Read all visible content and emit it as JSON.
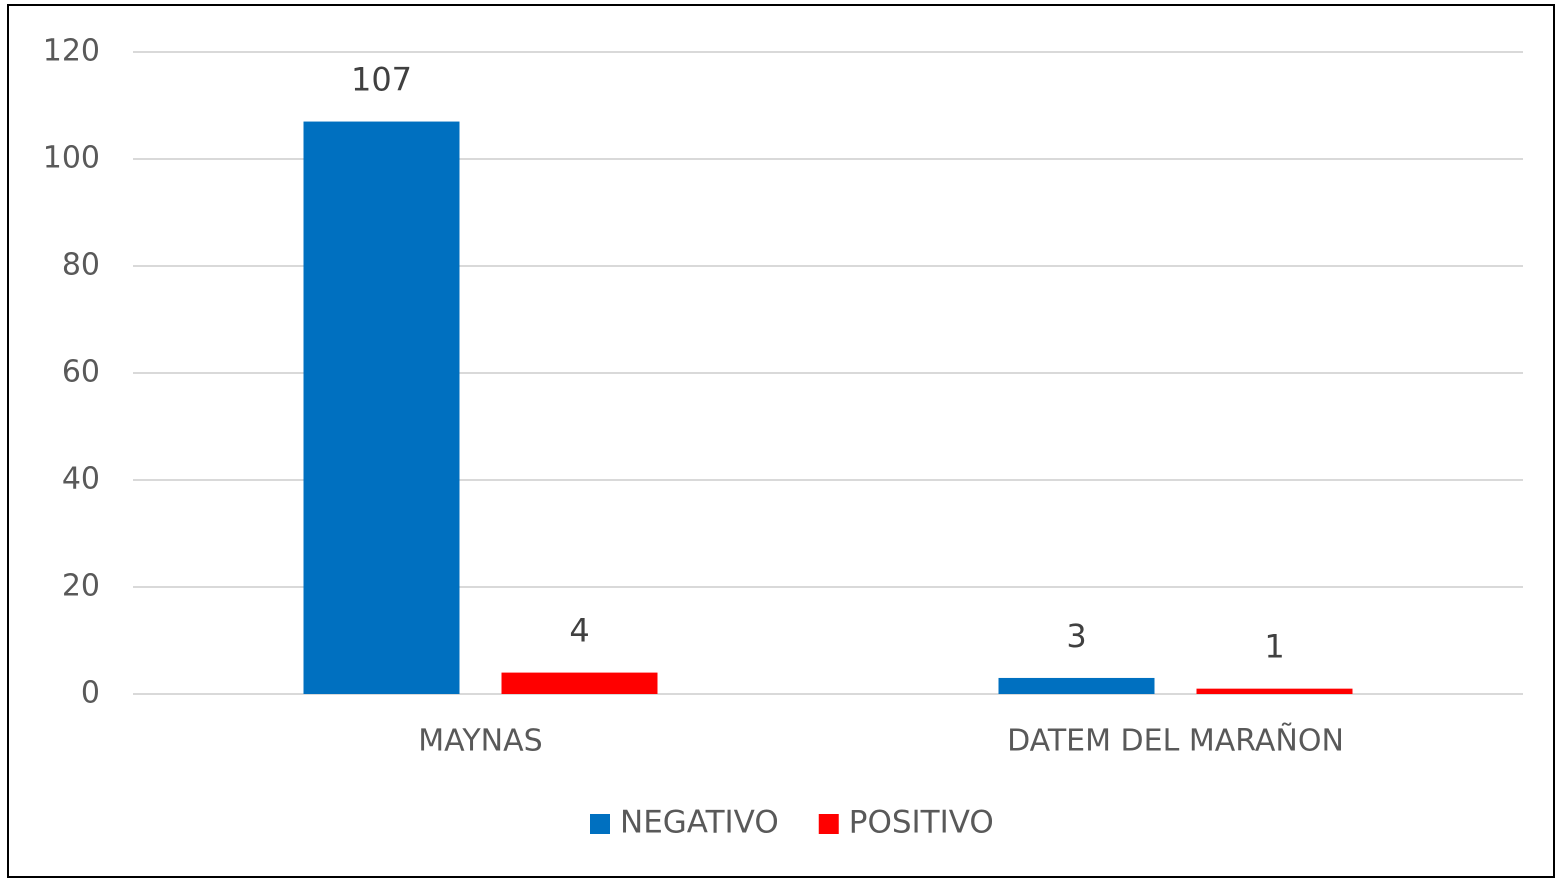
{
  "chart_data": {
    "type": "bar",
    "categories": [
      "MAYNAS",
      "DATEM DEL MARAÑON"
    ],
    "series": [
      {
        "name": "NEGATIVO",
        "color": "#0070c0",
        "values": [
          107,
          3
        ]
      },
      {
        "name": "POSITIVO",
        "color": "#ff0000",
        "values": [
          4,
          1
        ]
      }
    ],
    "ylim": [
      0,
      120
    ],
    "yticks": [
      0,
      20,
      40,
      60,
      80,
      100,
      120
    ],
    "grid": true,
    "legend": "bottom"
  }
}
